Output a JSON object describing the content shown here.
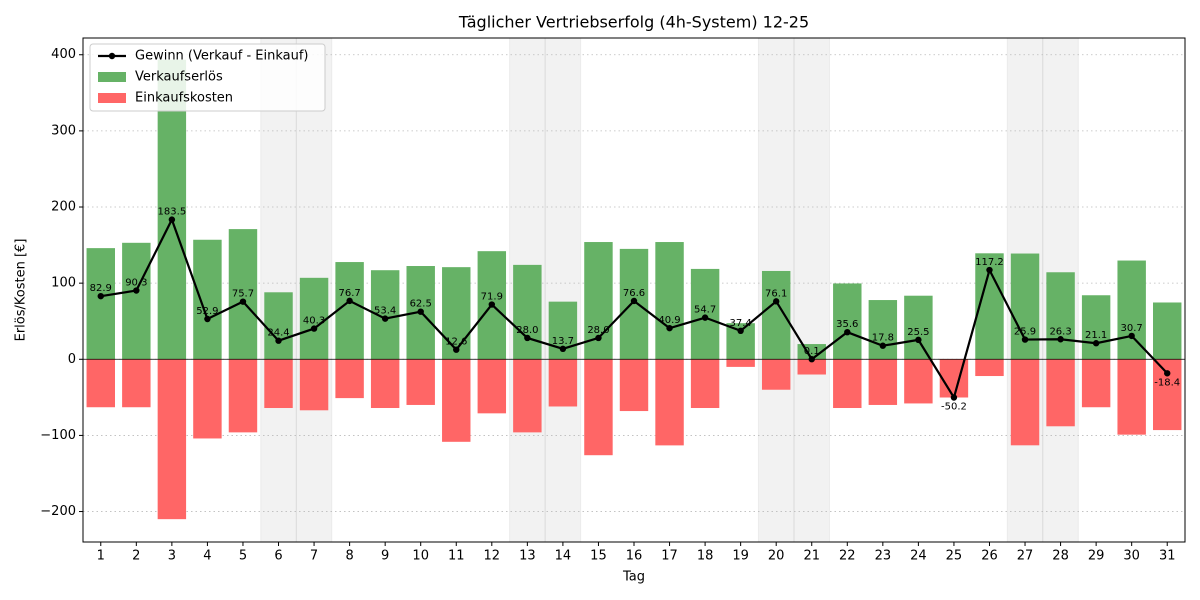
{
  "chart_data": {
    "type": "bar-line",
    "title": "Täglicher Vertriebserfolg (4h-System) 12-25",
    "x_label": "Tag",
    "y_label": "Erlös/Kosten [€]",
    "categories": [
      "1",
      "2",
      "3",
      "4",
      "5",
      "6",
      "7",
      "8",
      "9",
      "10",
      "11",
      "12",
      "13",
      "14",
      "15",
      "16",
      "17",
      "18",
      "19",
      "20",
      "21",
      "22",
      "23",
      "24",
      "25",
      "26",
      "27",
      "28",
      "29",
      "30",
      "31"
    ],
    "shaded_categories": [
      "6",
      "7",
      "13",
      "14",
      "20",
      "21",
      "27",
      "28"
    ],
    "series": [
      {
        "name": "Gewinn (Verkauf - Einkauf)",
        "type": "line",
        "color": "#000000",
        "values": [
          82.9,
          90.3,
          183.5,
          52.9,
          75.7,
          24.4,
          40.3,
          76.7,
          53.4,
          62.5,
          12.6,
          71.9,
          28.0,
          13.7,
          28.0,
          76.6,
          40.9,
          54.7,
          37.4,
          76.1,
          0.1,
          35.6,
          17.8,
          25.5,
          -50.2,
          117.2,
          25.9,
          26.3,
          21.1,
          30.7,
          -18.4
        ],
        "value_labels": [
          "82.9",
          "90.3",
          "183.5",
          "52.9",
          "75.7",
          "24.4",
          "40.3",
          "76.7",
          "53.4",
          "62.5",
          "12.6",
          "71.9",
          "28.0",
          "13.7",
          "28.0",
          "76.6",
          "40.9",
          "54.7",
          "37.4",
          "76.1",
          "0.1",
          "35.6",
          "17.8",
          "25.5",
          "-50.2",
          "117.2",
          "25.9",
          "26.3",
          "21.1",
          "30.7",
          "-18.4"
        ]
      },
      {
        "name": "Verkaufserlös",
        "type": "bar",
        "color": "#66b266",
        "values": [
          146,
          153,
          393.5,
          157,
          171,
          88,
          107,
          127.7,
          117,
          122.5,
          121,
          142,
          124,
          75.7,
          154,
          145,
          154,
          118.7,
          47.4,
          116,
          20,
          99.6,
          77.8,
          83.5,
          0,
          139.2,
          138.9,
          114.3,
          84.1,
          129.7,
          74.6
        ]
      },
      {
        "name": "Einkaufskosten",
        "type": "bar",
        "color": "#ff6666",
        "values": [
          -63,
          -63,
          -210,
          -104,
          -96,
          -64,
          -67,
          -51,
          -64,
          -60,
          -108.4,
          -71,
          -96,
          -62,
          -126,
          -68,
          -113.1,
          -64,
          -10,
          -40,
          -20,
          -64,
          -60,
          -58,
          -50.2,
          -22,
          -113,
          -88,
          -63,
          -99,
          -93
        ]
      }
    ],
    "ylim": [
      -240,
      422
    ],
    "yticks": [
      {
        "value": -200,
        "label": "−200"
      },
      {
        "value": -100,
        "label": "−100"
      },
      0,
      100,
      200,
      300,
      400
    ],
    "grid": true,
    "legend": "upper-left"
  }
}
